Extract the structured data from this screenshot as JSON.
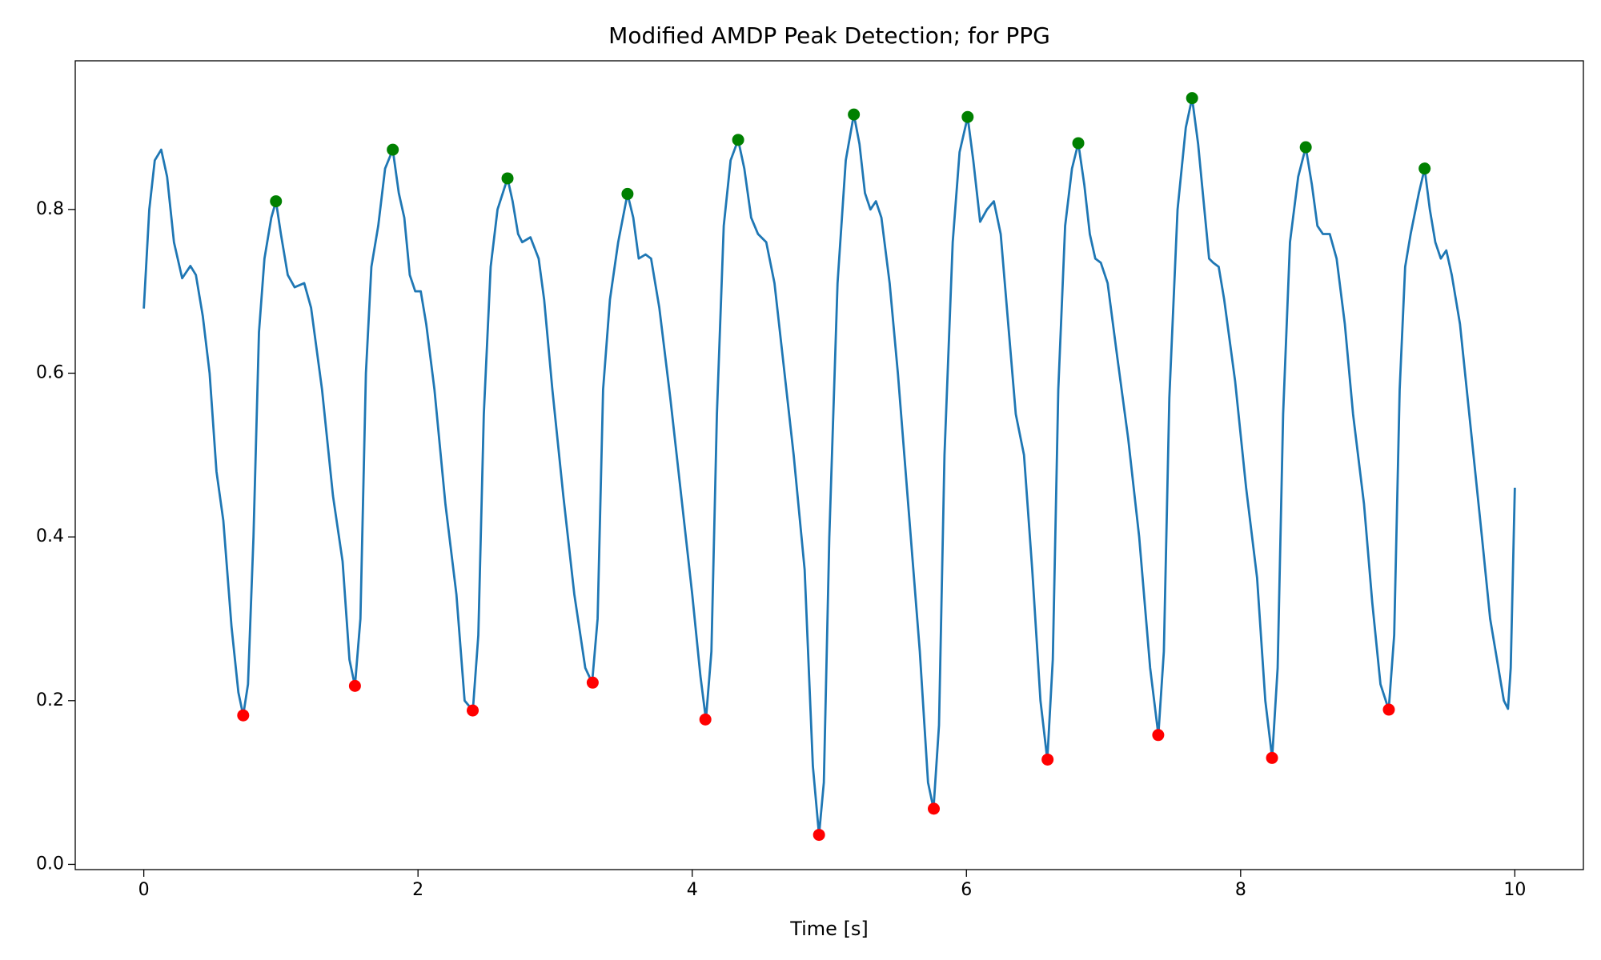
{
  "chart_data": {
    "type": "line",
    "title": "Modified AMDP Peak Detection; for PPG",
    "x_label": "Time [s]",
    "xlim": [
      -0.5,
      10.5
    ],
    "xticks": [
      0,
      2,
      4,
      6,
      8,
      10
    ],
    "ylim": [
      -0.0064,
      0.9816
    ],
    "yticks": [
      {
        "value": 0,
        "label": "0.0"
      },
      0.2,
      0.4,
      0.6,
      0.8
    ],
    "grid": false,
    "series": [
      {
        "color": "#1f77b4",
        "x": [
          0,
          0.04,
          0.08,
          0.127,
          0.17,
          0.22,
          0.28,
          0.34,
          0.38,
          0.43,
          0.48,
          0.53,
          0.58,
          0.64,
          0.69,
          0.725,
          0.76,
          0.8,
          0.84,
          0.88,
          0.93,
          0.964,
          1.0,
          1.05,
          1.1,
          1.17,
          1.22,
          1.3,
          1.38,
          1.45,
          1.5,
          1.54,
          1.58,
          1.62,
          1.66,
          1.71,
          1.76,
          1.816,
          1.86,
          1.9,
          1.94,
          1.98,
          2.02,
          2.06,
          2.12,
          2.2,
          2.28,
          2.34,
          2.4,
          2.44,
          2.48,
          2.53,
          2.58,
          2.653,
          2.69,
          2.73,
          2.76,
          2.82,
          2.88,
          2.92,
          2.98,
          3.06,
          3.14,
          3.22,
          3.27,
          3.31,
          3.35,
          3.4,
          3.46,
          3.528,
          3.57,
          3.61,
          3.66,
          3.7,
          3.76,
          3.84,
          3.92,
          4.0,
          4.06,
          4.1,
          4.14,
          4.18,
          4.23,
          4.28,
          4.335,
          4.38,
          4.43,
          4.48,
          4.54,
          4.6,
          4.66,
          4.74,
          4.82,
          4.88,
          4.925,
          4.96,
          5.0,
          5.06,
          5.12,
          5.179,
          5.22,
          5.26,
          5.3,
          5.34,
          5.38,
          5.44,
          5.5,
          5.58,
          5.66,
          5.72,
          5.76,
          5.8,
          5.84,
          5.9,
          5.95,
          6.009,
          6.05,
          6.1,
          6.15,
          6.2,
          6.25,
          6.3,
          6.36,
          6.42,
          6.48,
          6.54,
          6.59,
          6.63,
          6.67,
          6.72,
          6.77,
          6.816,
          6.86,
          6.9,
          6.94,
          6.98,
          7.03,
          7.1,
          7.18,
          7.26,
          7.34,
          7.4,
          7.44,
          7.48,
          7.54,
          7.6,
          7.646,
          7.69,
          7.73,
          7.77,
          7.8,
          7.84,
          7.88,
          7.96,
          8.04,
          8.12,
          8.18,
          8.23,
          8.27,
          8.31,
          8.36,
          8.42,
          8.475,
          8.52,
          8.56,
          8.6,
          8.65,
          8.7,
          8.76,
          8.82,
          8.9,
          8.96,
          9.02,
          9.08,
          9.12,
          9.16,
          9.2,
          9.24,
          9.3,
          9.342,
          9.38,
          9.42,
          9.46,
          9.5,
          9.54,
          9.6,
          9.68,
          9.76,
          9.82,
          9.88,
          9.92,
          9.95,
          9.97,
          10.0
        ],
        "values": [
          0.679,
          0.8,
          0.86,
          0.873,
          0.84,
          0.76,
          0.716,
          0.731,
          0.72,
          0.67,
          0.6,
          0.48,
          0.42,
          0.29,
          0.21,
          0.182,
          0.22,
          0.4,
          0.65,
          0.74,
          0.79,
          0.81,
          0.77,
          0.72,
          0.705,
          0.71,
          0.68,
          0.58,
          0.45,
          0.37,
          0.25,
          0.218,
          0.3,
          0.6,
          0.73,
          0.78,
          0.85,
          0.873,
          0.82,
          0.79,
          0.72,
          0.7,
          0.7,
          0.66,
          0.58,
          0.44,
          0.33,
          0.2,
          0.188,
          0.28,
          0.55,
          0.73,
          0.8,
          0.838,
          0.81,
          0.77,
          0.76,
          0.766,
          0.74,
          0.69,
          0.58,
          0.45,
          0.33,
          0.24,
          0.222,
          0.3,
          0.58,
          0.69,
          0.76,
          0.819,
          0.79,
          0.74,
          0.745,
          0.74,
          0.68,
          0.57,
          0.45,
          0.33,
          0.23,
          0.177,
          0.26,
          0.55,
          0.78,
          0.86,
          0.885,
          0.85,
          0.79,
          0.77,
          0.76,
          0.71,
          0.62,
          0.5,
          0.36,
          0.12,
          0.036,
          0.1,
          0.4,
          0.71,
          0.86,
          0.916,
          0.88,
          0.82,
          0.8,
          0.81,
          0.79,
          0.71,
          0.6,
          0.43,
          0.26,
          0.1,
          0.068,
          0.17,
          0.5,
          0.76,
          0.87,
          0.913,
          0.86,
          0.785,
          0.8,
          0.81,
          0.77,
          0.67,
          0.55,
          0.5,
          0.36,
          0.2,
          0.128,
          0.25,
          0.58,
          0.78,
          0.85,
          0.881,
          0.83,
          0.77,
          0.74,
          0.735,
          0.71,
          0.62,
          0.52,
          0.4,
          0.24,
          0.158,
          0.26,
          0.57,
          0.8,
          0.9,
          0.936,
          0.88,
          0.81,
          0.74,
          0.735,
          0.73,
          0.69,
          0.59,
          0.46,
          0.35,
          0.2,
          0.13,
          0.24,
          0.55,
          0.76,
          0.84,
          0.876,
          0.83,
          0.78,
          0.77,
          0.77,
          0.74,
          0.66,
          0.55,
          0.44,
          0.32,
          0.22,
          0.189,
          0.28,
          0.58,
          0.73,
          0.77,
          0.82,
          0.85,
          0.8,
          0.76,
          0.74,
          0.75,
          0.72,
          0.66,
          0.53,
          0.4,
          0.3,
          0.24,
          0.2,
          0.19,
          0.24,
          0.46
        ]
      },
      {
        "color": "green",
        "marker": "dot",
        "x": [
          0.964,
          1.816,
          2.653,
          3.528,
          4.335,
          5.179,
          6.009,
          6.816,
          7.646,
          8.475,
          9.342
        ],
        "values": [
          0.81,
          0.873,
          0.838,
          0.819,
          0.885,
          0.916,
          0.913,
          0.881,
          0.936,
          0.876,
          0.85
        ]
      },
      {
        "color": "red",
        "marker": "dot",
        "x": [
          0.725,
          1.54,
          2.399,
          3.274,
          4.096,
          4.925,
          5.762,
          6.592,
          7.399,
          8.229,
          9.081
        ],
        "values": [
          0.182,
          0.218,
          0.188,
          0.222,
          0.177,
          0.036,
          0.068,
          0.128,
          0.158,
          0.13,
          0.189
        ]
      }
    ]
  }
}
